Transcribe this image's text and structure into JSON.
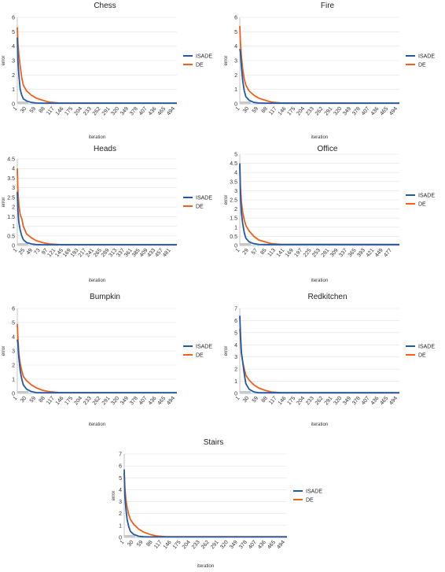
{
  "colors": {
    "ISADE": "#1f5aa6",
    "DE": "#f0601c"
  },
  "chart_data": [
    {
      "type": "line",
      "title": "Chess",
      "xlabel": "iteration",
      "ylabel": "error",
      "ylim": [
        0,
        6
      ],
      "yticks": [
        0,
        1,
        2,
        3,
        4,
        5,
        6
      ],
      "categories": [
        "1",
        "30",
        "59",
        "88",
        "117",
        "146",
        "175",
        "204",
        "233",
        "262",
        "291",
        "320",
        "349",
        "378",
        "407",
        "436",
        "465",
        "494"
      ],
      "legend": "right",
      "series": [
        {
          "name": "ISADE",
          "x": [
            1,
            3,
            6,
            10,
            15,
            20,
            30,
            45,
            60,
            80,
            500
          ],
          "values": [
            4.6,
            3.0,
            2.0,
            1.0,
            0.6,
            0.35,
            0.2,
            0.1,
            0.06,
            0.05,
            0.05
          ]
        },
        {
          "name": "DE",
          "x": [
            1,
            3,
            6,
            10,
            15,
            20,
            30,
            45,
            60,
            80,
            100,
            130,
            500
          ],
          "values": [
            5.3,
            4.2,
            3.4,
            2.6,
            1.8,
            1.3,
            0.9,
            0.6,
            0.4,
            0.25,
            0.12,
            0.06,
            0.05
          ]
        }
      ]
    },
    {
      "type": "line",
      "title": "Fire",
      "xlabel": "iteration",
      "ylabel": "error",
      "ylim": [
        0,
        6
      ],
      "yticks": [
        0,
        1,
        2,
        3,
        4,
        5,
        6
      ],
      "categories": [
        "1",
        "30",
        "59",
        "88",
        "117",
        "146",
        "175",
        "204",
        "233",
        "262",
        "291",
        "320",
        "349",
        "378",
        "407",
        "436",
        "465",
        "494"
      ],
      "legend": "right",
      "series": [
        {
          "name": "ISADE",
          "x": [
            1,
            3,
            6,
            10,
            15,
            20,
            30,
            45,
            60,
            80,
            500
          ],
          "values": [
            3.8,
            3.6,
            2.6,
            1.6,
            0.9,
            0.5,
            0.25,
            0.1,
            0.06,
            0.05,
            0.05
          ]
        },
        {
          "name": "DE",
          "x": [
            1,
            3,
            6,
            10,
            15,
            20,
            30,
            45,
            60,
            80,
            100,
            130,
            500
          ],
          "values": [
            5.4,
            4.3,
            3.3,
            2.4,
            1.7,
            1.3,
            0.9,
            0.6,
            0.4,
            0.25,
            0.12,
            0.06,
            0.05
          ]
        }
      ]
    },
    {
      "type": "line",
      "title": "Heads",
      "xlabel": "iteration",
      "ylabel": "error",
      "ylim": [
        0,
        4.5
      ],
      "yticks": [
        0,
        0.5,
        1,
        1.5,
        2,
        2.5,
        3,
        3.5,
        4,
        4.5
      ],
      "categories": [
        "1",
        "25",
        "49",
        "73",
        "97",
        "121",
        "145",
        "169",
        "193",
        "217",
        "241",
        "265",
        "289",
        "313",
        "337",
        "361",
        "385",
        "409",
        "433",
        "457",
        "481"
      ],
      "legend": "right",
      "series": [
        {
          "name": "ISADE",
          "x": [
            1,
            3,
            6,
            10,
            15,
            20,
            30,
            45,
            60,
            80,
            500
          ],
          "values": [
            2.8,
            1.8,
            1.2,
            0.8,
            0.5,
            0.3,
            0.15,
            0.08,
            0.05,
            0.04,
            0.04
          ]
        },
        {
          "name": "DE",
          "x": [
            1,
            3,
            6,
            10,
            15,
            20,
            30,
            45,
            60,
            80,
            100,
            130,
            500
          ],
          "values": [
            4.0,
            2.8,
            2.1,
            1.6,
            1.4,
            1.0,
            0.6,
            0.4,
            0.25,
            0.15,
            0.08,
            0.05,
            0.04
          ]
        }
      ]
    },
    {
      "type": "line",
      "title": "Office",
      "xlabel": "iteration",
      "ylabel": "error",
      "ylim": [
        0,
        5
      ],
      "yticks": [
        0,
        0.5,
        1,
        1.5,
        2,
        2.5,
        3,
        3.5,
        4,
        4.5,
        5
      ],
      "categories": [
        "1",
        "29",
        "57",
        "85",
        "113",
        "141",
        "169",
        "197",
        "225",
        "253",
        "281",
        "309",
        "337",
        "365",
        "393",
        "421",
        "449",
        "477"
      ],
      "legend": "right",
      "series": [
        {
          "name": "ISADE",
          "x": [
            1,
            3,
            6,
            10,
            15,
            20,
            30,
            45,
            60,
            80,
            500
          ],
          "values": [
            4.5,
            2.8,
            1.8,
            1.2,
            0.7,
            0.4,
            0.2,
            0.1,
            0.06,
            0.05,
            0.05
          ]
        },
        {
          "name": "DE",
          "x": [
            1,
            3,
            6,
            10,
            15,
            20,
            30,
            45,
            60,
            80,
            100,
            130,
            500
          ],
          "values": [
            4.4,
            3.2,
            2.4,
            1.8,
            1.4,
            1.1,
            0.8,
            0.5,
            0.3,
            0.2,
            0.1,
            0.06,
            0.05
          ]
        }
      ]
    },
    {
      "type": "line",
      "title": "Bumpkin",
      "xlabel": "iteration",
      "ylabel": "error",
      "ylim": [
        0,
        6
      ],
      "yticks": [
        0,
        1,
        2,
        3,
        4,
        5,
        6
      ],
      "categories": [
        "1",
        "30",
        "59",
        "88",
        "117",
        "146",
        "175",
        "204",
        "233",
        "262",
        "291",
        "320",
        "349",
        "378",
        "407",
        "436",
        "465",
        "494"
      ],
      "legend": "right",
      "series": [
        {
          "name": "ISADE",
          "x": [
            1,
            3,
            6,
            10,
            15,
            20,
            30,
            45,
            60,
            80,
            500
          ],
          "values": [
            3.8,
            3.5,
            2.5,
            1.6,
            1.0,
            0.6,
            0.3,
            0.12,
            0.06,
            0.05,
            0.05
          ]
        },
        {
          "name": "DE",
          "x": [
            1,
            3,
            6,
            10,
            15,
            20,
            30,
            45,
            60,
            80,
            100,
            130,
            500
          ],
          "values": [
            4.9,
            3.9,
            2.8,
            2.1,
            1.6,
            1.2,
            0.9,
            0.6,
            0.4,
            0.22,
            0.12,
            0.06,
            0.05
          ]
        }
      ]
    },
    {
      "type": "line",
      "title": "Redkitchen",
      "xlabel": "iteration",
      "ylabel": "error",
      "ylim": [
        0,
        7
      ],
      "yticks": [
        0,
        1,
        2,
        3,
        4,
        5,
        6,
        7
      ],
      "categories": [
        "1",
        "30",
        "59",
        "88",
        "117",
        "146",
        "175",
        "204",
        "233",
        "262",
        "291",
        "320",
        "349",
        "378",
        "407",
        "436",
        "465",
        "494"
      ],
      "legend": "right",
      "series": [
        {
          "name": "ISADE",
          "x": [
            1,
            3,
            6,
            10,
            15,
            20,
            30,
            45,
            60,
            80,
            500
          ],
          "values": [
            6.4,
            5.0,
            3.4,
            2.6,
            1.6,
            0.8,
            0.35,
            0.12,
            0.06,
            0.05,
            0.05
          ]
        },
        {
          "name": "DE",
          "x": [
            1,
            3,
            6,
            10,
            15,
            20,
            30,
            45,
            60,
            80,
            100,
            130,
            500
          ],
          "values": [
            5.3,
            4.5,
            3.3,
            2.6,
            2.0,
            1.5,
            1.1,
            0.7,
            0.45,
            0.25,
            0.12,
            0.06,
            0.05
          ]
        }
      ]
    },
    {
      "type": "line",
      "title": "Stairs",
      "xlabel": "iteration",
      "ylabel": "error",
      "ylim": [
        0,
        7
      ],
      "yticks": [
        0,
        1,
        2,
        3,
        4,
        5,
        6,
        7
      ],
      "categories": [
        "1",
        "30",
        "59",
        "88",
        "117",
        "146",
        "175",
        "204",
        "233",
        "262",
        "291",
        "320",
        "349",
        "378",
        "407",
        "436",
        "465",
        "494"
      ],
      "legend": "right",
      "series": [
        {
          "name": "ISADE",
          "x": [
            1,
            3,
            6,
            10,
            15,
            20,
            30,
            45,
            60,
            80,
            500
          ],
          "values": [
            5.7,
            3.5,
            2.4,
            1.5,
            0.9,
            0.5,
            0.25,
            0.1,
            0.05,
            0.04,
            0.04
          ]
        },
        {
          "name": "DE",
          "x": [
            1,
            3,
            6,
            10,
            15,
            20,
            30,
            45,
            60,
            80,
            100,
            130,
            500
          ],
          "values": [
            5.4,
            4.2,
            3.2,
            2.5,
            1.9,
            1.5,
            1.1,
            0.7,
            0.45,
            0.25,
            0.12,
            0.06,
            0.05
          ]
        }
      ]
    }
  ]
}
